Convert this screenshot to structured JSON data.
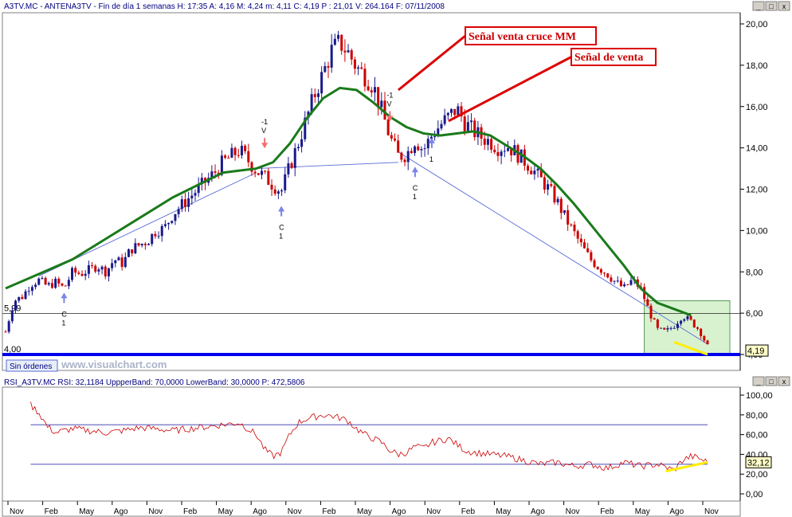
{
  "header": {
    "main_info": "A3TV.MC - ANTENA3TV - Fin de día 1 semanas H: 17:35  A: 4,16  M: 4,24  m: 4,11  C: 4,19  P : 21,01  V: 264.164  F: 07/11/2008",
    "rsi_info": "RSI_A3TV.MC  RSI: 32,1184  UppperBand: 70,0000  LowerBand: 30,0000  P: 472,5806"
  },
  "window_controls": {
    "main": [
      "_",
      "□",
      "x"
    ],
    "rsi": [
      "_",
      "□",
      "x"
    ]
  },
  "toolbar": {
    "orders_button": "Sin órdenes",
    "watermark": "www.visualchart.com"
  },
  "chart_data": [
    {
      "type": "candlestick",
      "title": "A3TV.MC - ANTENA3TV",
      "y_ticks": [
        "20,00",
        "18,00",
        "16,00",
        "14,00",
        "12,00",
        "10,00",
        "8,00",
        "6,00",
        "4,00"
      ],
      "ylim": [
        3.7,
        20.7
      ],
      "x_labels": [
        "Nov",
        "Feb",
        "May",
        "Ago",
        "Nov",
        "Feb",
        "May",
        "Ago",
        "Nov",
        "Feb",
        "May",
        "Ago",
        "Nov",
        "Feb",
        "May",
        "Ago",
        "Nov",
        "Feb",
        "May",
        "Ago",
        "Nov"
      ],
      "horizontal_levels": [
        {
          "label": "5,99",
          "value": 5.99
        },
        {
          "label": "4,00",
          "value": 4.0
        }
      ],
      "last_price_label": "4,19",
      "price_path": [
        [
          0,
          5.1
        ],
        [
          1,
          6.6
        ],
        [
          2,
          6.8
        ],
        [
          3,
          7.4
        ],
        [
          4,
          7.6
        ],
        [
          5,
          7.3
        ],
        [
          6,
          7.5
        ],
        [
          7,
          7.2
        ],
        [
          8,
          8.0
        ],
        [
          9,
          7.9
        ],
        [
          10,
          8.1
        ],
        [
          11,
          8.3
        ],
        [
          12,
          8.0
        ],
        [
          13,
          8.6
        ],
        [
          14,
          8.4
        ],
        [
          15,
          9.1
        ],
        [
          16,
          9.3
        ],
        [
          17,
          9.5
        ],
        [
          18,
          10.0
        ],
        [
          19,
          10.1
        ],
        [
          20,
          10.8
        ],
        [
          21,
          11.2
        ],
        [
          22,
          11.6
        ],
        [
          23,
          12.0
        ],
        [
          24,
          12.4
        ],
        [
          25,
          12.8
        ],
        [
          26,
          13.3
        ],
        [
          27,
          13.6
        ],
        [
          28,
          13.9
        ],
        [
          29,
          13.4
        ],
        [
          30,
          12.9
        ],
        [
          31,
          12.6
        ],
        [
          32,
          12.2
        ],
        [
          33,
          11.9
        ],
        [
          34,
          13.1
        ],
        [
          35,
          14.2
        ],
        [
          36,
          15.4
        ],
        [
          37,
          16.6
        ],
        [
          38,
          17.6
        ],
        [
          39,
          18.7
        ],
        [
          40,
          19.1
        ],
        [
          41,
          18.6
        ],
        [
          42,
          17.9
        ],
        [
          43,
          17.5
        ],
        [
          44,
          17.0
        ],
        [
          45,
          15.8
        ],
        [
          46,
          14.5
        ],
        [
          47,
          13.6
        ],
        [
          48,
          13.7
        ],
        [
          49,
          14.4
        ],
        [
          50,
          13.9
        ],
        [
          51,
          14.6
        ],
        [
          52,
          15.1
        ],
        [
          53,
          15.5
        ],
        [
          54,
          15.9
        ],
        [
          55,
          15.2
        ],
        [
          56,
          14.8
        ],
        [
          57,
          14.5
        ],
        [
          58,
          14.3
        ],
        [
          59,
          14.0
        ],
        [
          60,
          14.1
        ],
        [
          61,
          13.8
        ],
        [
          62,
          13.4
        ],
        [
          63,
          13.0
        ],
        [
          64,
          12.5
        ],
        [
          65,
          12.0
        ],
        [
          66,
          11.4
        ],
        [
          67,
          10.6
        ],
        [
          68,
          9.9
        ],
        [
          69,
          9.2
        ],
        [
          70,
          8.6
        ],
        [
          71,
          8.2
        ],
        [
          72,
          7.9
        ],
        [
          73,
          7.5
        ],
        [
          74,
          7.2
        ],
        [
          75,
          7.6
        ],
        [
          76,
          7.2
        ],
        [
          77,
          6.1
        ],
        [
          78,
          5.2
        ],
        [
          79,
          5.1
        ],
        [
          80,
          5.4
        ],
        [
          81,
          5.9
        ],
        [
          82,
          5.6
        ],
        [
          83,
          5.2
        ],
        [
          84,
          4.4
        ]
      ],
      "ma_path": [
        [
          0,
          7.2
        ],
        [
          4,
          7.9
        ],
        [
          8,
          8.6
        ],
        [
          12,
          9.6
        ],
        [
          16,
          10.6
        ],
        [
          20,
          11.6
        ],
        [
          24,
          12.4
        ],
        [
          26,
          12.8
        ],
        [
          28,
          12.9
        ],
        [
          30,
          13.0
        ],
        [
          32,
          13.3
        ],
        [
          34,
          14.2
        ],
        [
          36,
          15.4
        ],
        [
          38,
          16.4
        ],
        [
          40,
          16.9
        ],
        [
          42,
          16.8
        ],
        [
          44,
          16.2
        ],
        [
          46,
          15.5
        ],
        [
          48,
          15.0
        ],
        [
          50,
          14.7
        ],
        [
          52,
          14.6
        ],
        [
          54,
          14.7
        ],
        [
          56,
          14.8
        ],
        [
          58,
          14.6
        ],
        [
          60,
          14.1
        ],
        [
          62,
          13.6
        ],
        [
          64,
          13.0
        ],
        [
          66,
          12.2
        ],
        [
          68,
          11.3
        ],
        [
          70,
          10.3
        ],
        [
          72,
          9.3
        ],
        [
          74,
          8.3
        ],
        [
          76,
          7.2
        ],
        [
          78,
          6.5
        ],
        [
          80,
          6.2
        ],
        [
          82,
          5.9
        ]
      ],
      "trend_lines": [
        {
          "from": [
            4,
            7.8
          ],
          "to": [
            30,
            12.8
          ]
        },
        {
          "from": [
            30,
            13.0
          ],
          "to": [
            47,
            13.3
          ]
        },
        {
          "from": [
            47,
            13.8
          ],
          "to": [
            84,
            4.5
          ]
        }
      ],
      "support_line": [
        {
          "from": [
            80,
            4.6
          ],
          "to": [
            84,
            4.0
          ]
        }
      ],
      "signals": [
        {
          "x": 7,
          "type": "buy",
          "labels": [
            "C",
            "1"
          ],
          "value": 7.3
        },
        {
          "x": 31,
          "type": "sell",
          "labels": [
            "-1",
            "V"
          ],
          "value": 13.9
        },
        {
          "x": 33,
          "type": "buy",
          "labels": [
            "C",
            "1"
          ],
          "value": 11.5
        },
        {
          "x": 46,
          "type": "sell",
          "labels": [
            "-1",
            "V"
          ],
          "value": 15.2
        },
        {
          "x": 49,
          "type": "buy",
          "labels": [
            "C",
            "1"
          ],
          "value": 13.4
        },
        {
          "x": 51,
          "type": "buy",
          "labels": [
            "1"
          ],
          "value": 14.8
        }
      ],
      "annotations": [
        {
          "text": "Señal venta cruce MM",
          "target": [
            47,
            16.8
          ]
        },
        {
          "text": "Señal de venta",
          "target": [
            53,
            15.3
          ]
        }
      ]
    },
    {
      "type": "line",
      "title": "RSI_A3TV.MC",
      "y_ticks": [
        "100,00",
        "80,00",
        "60,00",
        "40,00",
        "20,00",
        "0,00"
      ],
      "ylim": [
        -5,
        104
      ],
      "bands": [
        70,
        30
      ],
      "last_value_label": "32,12",
      "rsi_path": [
        [
          3,
          90
        ],
        [
          4,
          82
        ],
        [
          5,
          68
        ],
        [
          6,
          62
        ],
        [
          8,
          66
        ],
        [
          10,
          64
        ],
        [
          12,
          62
        ],
        [
          14,
          64
        ],
        [
          16,
          67
        ],
        [
          18,
          66
        ],
        [
          20,
          64
        ],
        [
          22,
          66
        ],
        [
          24,
          68
        ],
        [
          26,
          70
        ],
        [
          28,
          72
        ],
        [
          30,
          60
        ],
        [
          31,
          45
        ],
        [
          32,
          38
        ],
        [
          33,
          42
        ],
        [
          34,
          60
        ],
        [
          35,
          72
        ],
        [
          36,
          76
        ],
        [
          37,
          78
        ],
        [
          38,
          80
        ],
        [
          39,
          79
        ],
        [
          40,
          77
        ],
        [
          41,
          74
        ],
        [
          42,
          66
        ],
        [
          43,
          60
        ],
        [
          44,
          56
        ],
        [
          45,
          52
        ],
        [
          46,
          44
        ],
        [
          47,
          40
        ],
        [
          48,
          42
        ],
        [
          49,
          48
        ],
        [
          50,
          46
        ],
        [
          51,
          52
        ],
        [
          52,
          54
        ],
        [
          53,
          56
        ],
        [
          54,
          50
        ],
        [
          55,
          44
        ],
        [
          56,
          42
        ],
        [
          58,
          40
        ],
        [
          60,
          38
        ],
        [
          62,
          34
        ],
        [
          64,
          30
        ],
        [
          66,
          32
        ],
        [
          68,
          28
        ],
        [
          70,
          30
        ],
        [
          72,
          26
        ],
        [
          74,
          32
        ],
        [
          76,
          28
        ],
        [
          78,
          30
        ],
        [
          80,
          24
        ],
        [
          81,
          34
        ],
        [
          82,
          38
        ],
        [
          83,
          36
        ],
        [
          84,
          32
        ]
      ],
      "support_line": [
        {
          "from": [
            79,
            23
          ],
          "to": [
            84,
            32
          ]
        }
      ]
    }
  ],
  "colors": {
    "up_candle": "#1a1a8c",
    "down_candle": "#cc0000",
    "moving_average": "#1a7a1a",
    "trend_line": "#5a6ad8",
    "support_blue": "#0000ee",
    "highlight_box": "#d8f2d0",
    "callout_red": "#dd0000",
    "yellow": "#ffee00",
    "rsi_line": "#cc0000",
    "band": "#3333aa"
  }
}
